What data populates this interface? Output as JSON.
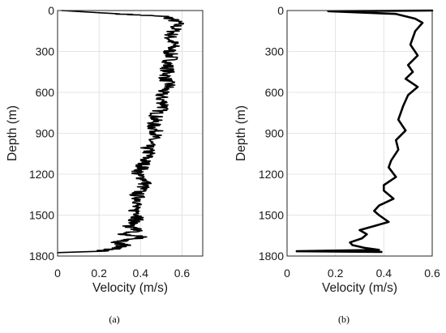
{
  "chart_data": [
    {
      "type": "line",
      "panel_label": "(a)",
      "xlabel": "Velocity (m/s)",
      "ylabel": "Depth (m)",
      "xlim": [
        0,
        0.7
      ],
      "ylim": [
        0,
        1800
      ],
      "y_reversed": true,
      "grid": true,
      "xticks": [
        "0",
        "0.2",
        "0.4",
        "0.6"
      ],
      "yticks": [
        "0",
        "300",
        "600",
        "900",
        "1200",
        "1500",
        "1800"
      ],
      "series": [
        {
          "noisy": true,
          "x": [
            0.02,
            0.3,
            0.53,
            0.58,
            0.56,
            0.54,
            0.56,
            0.54,
            0.55,
            0.53,
            0.53,
            0.52,
            0.54,
            0.5,
            0.5,
            0.52,
            0.48,
            0.47,
            0.46,
            0.48,
            0.45,
            0.43,
            0.44,
            0.42,
            0.41,
            0.38,
            0.43,
            0.41,
            0.38,
            0.4,
            0.36,
            0.4,
            0.38,
            0.37,
            0.33,
            0.4,
            0.3,
            0.42,
            0.35,
            0.28,
            0.32,
            0.28,
            0.2,
            0.0
          ],
          "y": [
            0,
            25,
            45,
            90,
            150,
            200,
            250,
            300,
            350,
            400,
            450,
            500,
            550,
            600,
            650,
            700,
            750,
            800,
            850,
            900,
            950,
            1000,
            1050,
            1100,
            1150,
            1200,
            1250,
            1300,
            1350,
            1400,
            1450,
            1500,
            1530,
            1550,
            1580,
            1610,
            1640,
            1660,
            1680,
            1700,
            1720,
            1745,
            1765,
            1775
          ]
        }
      ]
    },
    {
      "type": "line",
      "panel_label": "(b)",
      "xlabel": "Velocity (m/s)",
      "ylabel": "Depth (m)",
      "xlim": [
        0,
        0.6
      ],
      "ylim": [
        0,
        1800
      ],
      "y_reversed": true,
      "grid": true,
      "xticks": [
        "0",
        "0.2",
        "0.4",
        "0.6"
      ],
      "yticks": [
        "0",
        "300",
        "600",
        "900",
        "1200",
        "1500",
        "1800"
      ],
      "series": [
        {
          "noisy": false,
          "x": [
            0.6,
            0.17,
            0.45,
            0.53,
            0.56,
            0.53,
            0.51,
            0.54,
            0.5,
            0.52,
            0.49,
            0.54,
            0.5,
            0.48,
            0.46,
            0.49,
            0.45,
            0.46,
            0.43,
            0.42,
            0.45,
            0.4,
            0.4,
            0.44,
            0.38,
            0.36,
            0.38,
            0.42,
            0.36,
            0.3,
            0.33,
            0.31,
            0.26,
            0.27,
            0.32,
            0.38,
            0.04,
            0.39
          ],
          "y": [
            0,
            5,
            25,
            60,
            90,
            150,
            250,
            330,
            400,
            450,
            500,
            560,
            620,
            700,
            800,
            880,
            950,
            1020,
            1100,
            1150,
            1220,
            1280,
            1320,
            1380,
            1430,
            1470,
            1500,
            1550,
            1580,
            1610,
            1640,
            1670,
            1700,
            1720,
            1740,
            1755,
            1765,
            1770
          ]
        }
      ]
    }
  ]
}
